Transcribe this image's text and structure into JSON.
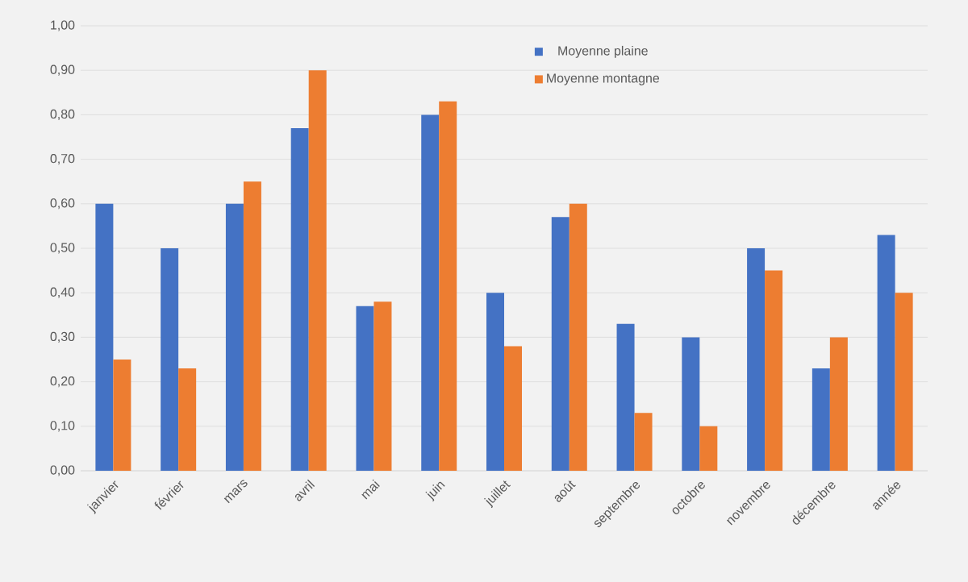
{
  "chart_data": {
    "type": "bar",
    "categories": [
      "janvier",
      "février",
      "mars",
      "avril",
      "mai",
      "juin",
      "juillet",
      "août",
      "septembre",
      "octobre",
      "novembre",
      "décembre",
      "année"
    ],
    "series": [
      {
        "name": "Moyenne plaine",
        "color": "#4472c4",
        "values": [
          0.6,
          0.5,
          0.6,
          0.77,
          0.37,
          0.8,
          0.4,
          0.57,
          0.33,
          0.3,
          0.5,
          0.23,
          0.53
        ]
      },
      {
        "name": "Moyenne montagne",
        "color": "#ed7d31",
        "values": [
          0.25,
          0.23,
          0.65,
          0.9,
          0.38,
          0.83,
          0.28,
          0.6,
          0.13,
          0.1,
          0.45,
          0.3,
          0.4
        ]
      }
    ],
    "ylim": [
      0,
      1
    ],
    "yticks": [
      {
        "value": 0,
        "label": "0,00"
      },
      {
        "value": 0.1,
        "label": "0,10"
      },
      {
        "value": 0.2,
        "label": "0,20"
      },
      {
        "value": 0.3,
        "label": "0,30"
      },
      {
        "value": 0.4,
        "label": "0,40"
      },
      {
        "value": 0.5,
        "label": "0,50"
      },
      {
        "value": 0.6,
        "label": "0,60"
      },
      {
        "value": 0.7,
        "label": "0,70"
      },
      {
        "value": 0.8,
        "label": "0,80"
      },
      {
        "value": 0.9,
        "label": "0,90"
      },
      {
        "value": 1,
        "label": "1,00"
      }
    ],
    "grid": "y",
    "legend": "top right"
  }
}
